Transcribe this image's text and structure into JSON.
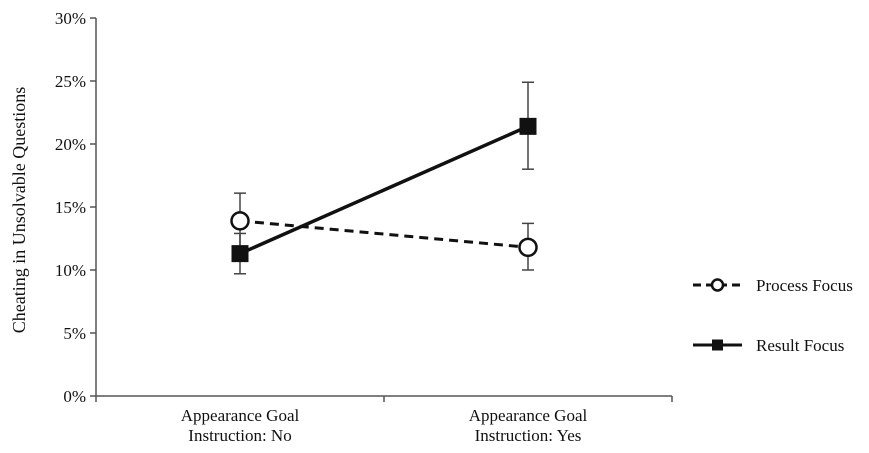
{
  "chart_data": {
    "type": "line",
    "title": "",
    "xlabel": "",
    "ylabel": "Cheating in Unsolvable Questions",
    "ylim": [
      0,
      30
    ],
    "yticks": [
      "0%",
      "5%",
      "10%",
      "15%",
      "20%",
      "25%",
      "30%"
    ],
    "categories": [
      [
        "Appearance Goal",
        "Instruction: No"
      ],
      [
        "Appearance Goal",
        "Instruction: Yes"
      ]
    ],
    "grid": false,
    "legend_position": "right",
    "series": [
      {
        "name": "Process Focus",
        "style": "dashed",
        "marker": "open-circle",
        "color": "#111111",
        "values": [
          13.9,
          11.8
        ],
        "error_low": [
          11.7,
          10.0
        ],
        "error_high": [
          16.1,
          13.7
        ]
      },
      {
        "name": "Result Focus",
        "style": "solid",
        "marker": "filled-square",
        "color": "#111111",
        "values": [
          11.3,
          21.4
        ],
        "error_low": [
          9.7,
          18.0
        ],
        "error_high": [
          12.9,
          24.9
        ]
      }
    ]
  }
}
